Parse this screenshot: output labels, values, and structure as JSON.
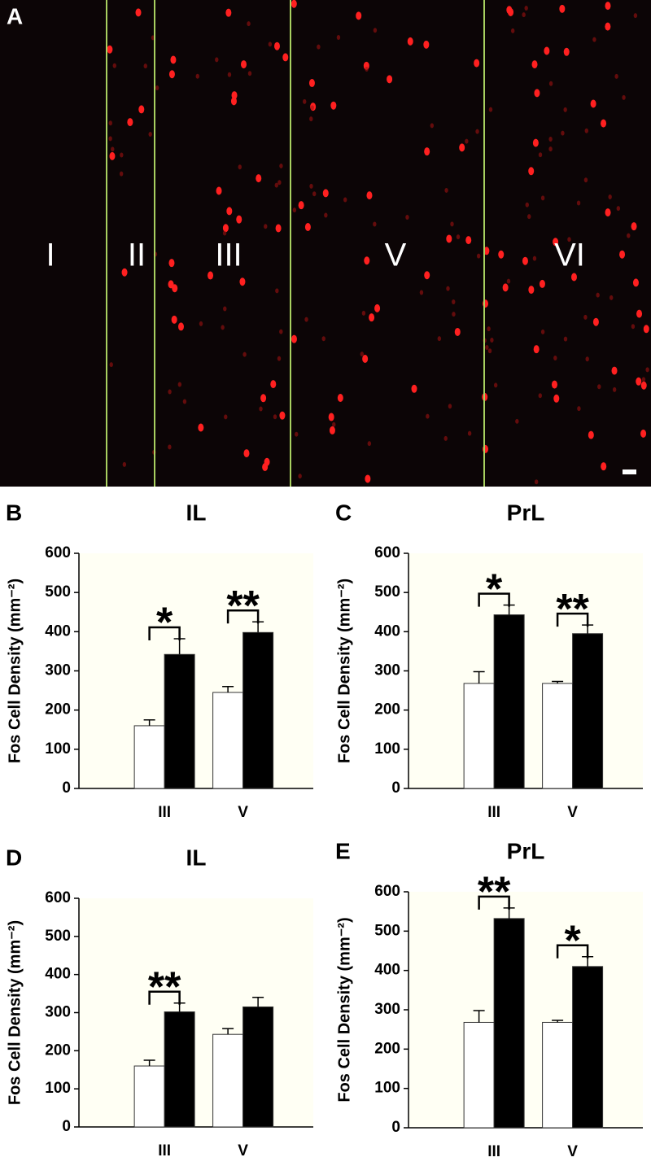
{
  "image": {
    "panel": "A",
    "layers": [
      "I",
      "II",
      "III",
      "V",
      "VI"
    ]
  },
  "chart_data": [
    {
      "type": "bar",
      "panel": "B",
      "title": "IL",
      "y_label": "Fos Cell Density (mm⁻²)",
      "categories": [
        "III",
        "V"
      ],
      "series": [
        {
          "color": "#ffffff",
          "values": [
            160,
            245
          ],
          "errors": [
            15,
            15
          ]
        },
        {
          "color": "#000000",
          "values": [
            342,
            398
          ],
          "errors": [
            40,
            27
          ]
        }
      ],
      "annotations": [
        "*",
        "**"
      ],
      "ylim": [
        0,
        600
      ],
      "yticks": [
        0,
        100,
        200,
        300,
        400,
        500,
        600
      ]
    },
    {
      "type": "bar",
      "panel": "C",
      "title": "PrL",
      "y_label": "Fos Cell Density (mm⁻²)",
      "categories": [
        "III",
        "V"
      ],
      "series": [
        {
          "color": "#ffffff",
          "values": [
            268,
            268
          ],
          "errors": [
            30,
            5
          ]
        },
        {
          "color": "#000000",
          "values": [
            443,
            395
          ],
          "errors": [
            25,
            22
          ]
        }
      ],
      "annotations": [
        "*",
        "**"
      ],
      "ylim": [
        0,
        600
      ],
      "yticks": [
        0,
        100,
        200,
        300,
        400,
        500,
        600
      ]
    },
    {
      "type": "bar",
      "panel": "D",
      "title": "IL",
      "y_label": "Fos Cell Density (mm⁻²)",
      "categories": [
        "III",
        "V"
      ],
      "series": [
        {
          "color": "#ffffff",
          "values": [
            160,
            243
          ],
          "errors": [
            15,
            15
          ]
        },
        {
          "color": "#000000",
          "values": [
            302,
            315
          ],
          "errors": [
            23,
            25
          ]
        }
      ],
      "annotations": [
        "**",
        null
      ],
      "ylim": [
        0,
        600
      ],
      "yticks": [
        0,
        100,
        200,
        300,
        400,
        500,
        600
      ]
    },
    {
      "type": "bar",
      "panel": "E",
      "title": "PrL",
      "y_label": "Fos Cell Density (mm⁻²)",
      "categories": [
        "III",
        "V"
      ],
      "series": [
        {
          "color": "#ffffff",
          "values": [
            268,
            268
          ],
          "errors": [
            30,
            5
          ]
        },
        {
          "color": "#000000",
          "values": [
            532,
            410
          ],
          "errors": [
            27,
            25
          ]
        }
      ],
      "annotations": [
        "**",
        "*"
      ],
      "ylim": [
        0,
        600
      ],
      "yticks": [
        0,
        100,
        200,
        300,
        400,
        500,
        600
      ]
    }
  ]
}
